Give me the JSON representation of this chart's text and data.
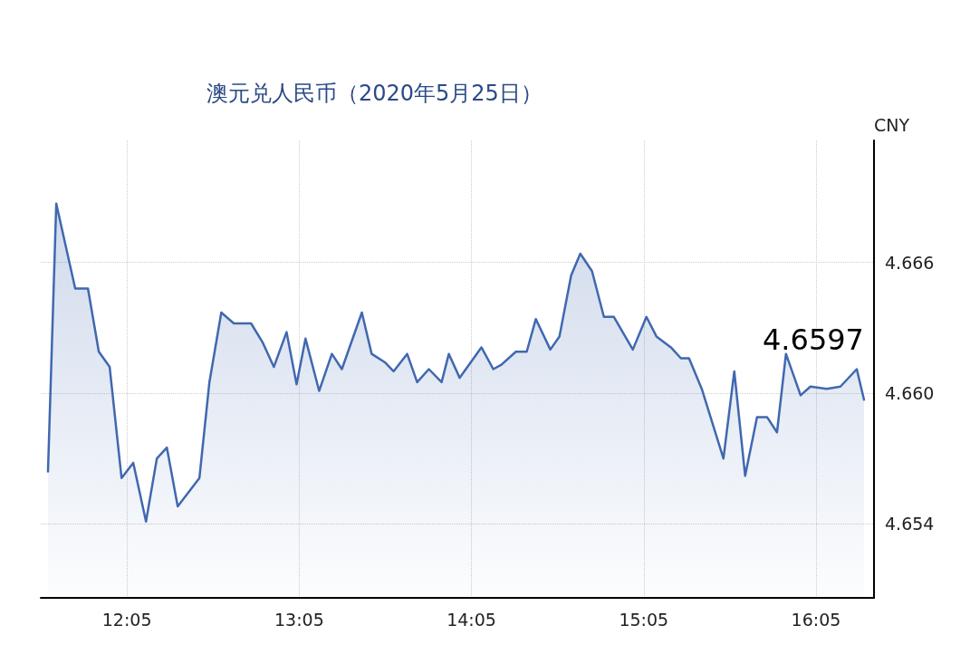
{
  "chart_data": {
    "type": "area",
    "title": "澳元兑人民币（2020年5月25日）",
    "ylabel": "CNY",
    "x": [
      11.625,
      11.673,
      11.783,
      11.857,
      11.92,
      11.983,
      12.052,
      12.12,
      12.194,
      12.257,
      12.315,
      12.378,
      12.504,
      12.562,
      12.631,
      12.704,
      12.804,
      12.873,
      12.936,
      13.01,
      13.068,
      13.12,
      13.199,
      13.273,
      13.331,
      13.447,
      13.504,
      13.583,
      13.631,
      13.71,
      13.768,
      13.836,
      13.91,
      13.952,
      14.015,
      14.141,
      14.21,
      14.257,
      14.341,
      14.404,
      14.457,
      14.541,
      14.594,
      14.662,
      14.715,
      14.783,
      14.852,
      14.91,
      15.02,
      15.099,
      15.157,
      15.241,
      15.299,
      15.346,
      15.42,
      15.546,
      15.609,
      15.672,
      15.741,
      15.799,
      15.857,
      15.909,
      15.994,
      16.051,
      16.146,
      16.225,
      16.32,
      16.362
    ],
    "series": [
      {
        "color": "#4068b0",
        "values": [
          4.6564,
          4.6687,
          4.6648,
          4.6648,
          4.6619,
          4.6612,
          4.6561,
          4.6568,
          4.6541,
          4.657,
          4.6575,
          4.6548,
          4.6561,
          4.6605,
          4.6637,
          4.6632,
          4.6632,
          4.6623,
          4.6612,
          4.6628,
          4.6604,
          4.6625,
          4.6601,
          4.6618,
          4.6611,
          4.6637,
          4.6618,
          4.6614,
          4.661,
          4.6618,
          4.6605,
          4.6611,
          4.6605,
          4.6618,
          4.6607,
          4.6621,
          4.6611,
          4.6613,
          4.6619,
          4.6619,
          4.6634,
          4.662,
          4.6626,
          4.6654,
          4.6664,
          4.6656,
          4.6635,
          4.6635,
          4.662,
          4.6635,
          4.6626,
          4.6621,
          4.6616,
          4.6616,
          4.6602,
          4.657,
          4.661,
          4.6562,
          4.6589,
          4.6589,
          4.6582,
          4.6618,
          4.6599,
          4.6603,
          4.6602,
          4.6603,
          4.6611,
          4.6597
        ]
      }
    ],
    "xlim": [
      11.583,
      16.42
    ],
    "xticks": [
      {
        "value": 12.0833,
        "label": "12:05"
      },
      {
        "value": 13.0833,
        "label": "13:05"
      },
      {
        "value": 14.0833,
        "label": "14:05"
      },
      {
        "value": 15.0833,
        "label": "15:05"
      },
      {
        "value": 16.0833,
        "label": "16:05"
      }
    ],
    "ylim": [
      4.6506,
      4.6716
    ],
    "yticks": [
      4.654,
      {
        "value": 4.66,
        "label": "4.660"
      },
      4.666
    ],
    "grid": true,
    "marker": "none",
    "line_style": "solid",
    "annotations": [
      {
        "text": "4.6597",
        "x": 16.362,
        "y": 4.6597
      }
    ]
  }
}
